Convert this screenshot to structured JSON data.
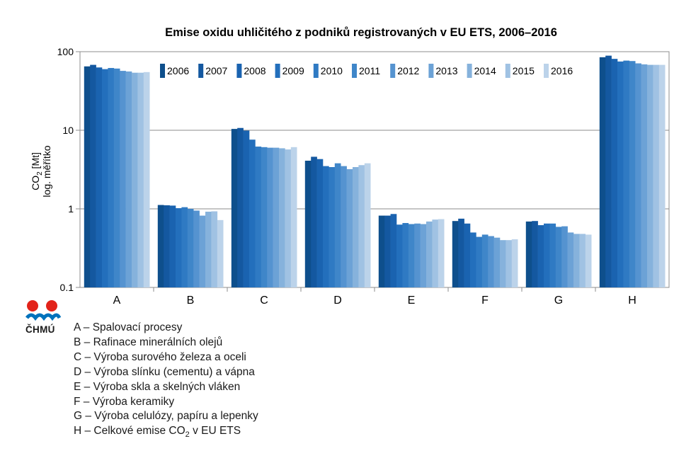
{
  "chart_data": {
    "type": "bar",
    "title": "Emise oxidu uhličitého z podniků registrovaných v EU ETS, 2006–2016",
    "ylabel_line1": "CO",
    "ylabel_sub": "2",
    "ylabel_unit": " [Mt]",
    "ylabel_line2": "log. měřítko",
    "yscale": "log",
    "ylim": [
      0.1,
      100
    ],
    "yticks": [
      {
        "value": 0.1,
        "label": "0.1"
      },
      {
        "value": 1,
        "label": "1"
      },
      {
        "value": 10,
        "label": "10"
      },
      {
        "value": 100,
        "label": "100"
      }
    ],
    "grid": true,
    "legend_position": "top",
    "categories": [
      "A",
      "B",
      "C",
      "D",
      "E",
      "F",
      "G",
      "H"
    ],
    "series": [
      {
        "name": "2006",
        "color": "#0e4f8c",
        "values": [
          65,
          1.12,
          10.4,
          4.1,
          0.82,
          0.7,
          0.69,
          85
        ]
      },
      {
        "name": "2007",
        "color": "#1458a0",
        "values": [
          68,
          1.11,
          10.7,
          4.6,
          0.82,
          0.75,
          0.7,
          89
        ]
      },
      {
        "name": "2008",
        "color": "#1a63b0",
        "values": [
          63,
          1.1,
          9.9,
          4.3,
          0.86,
          0.65,
          0.62,
          81
        ]
      },
      {
        "name": "2009",
        "color": "#236fbc",
        "values": [
          60,
          1.02,
          7.6,
          3.5,
          0.63,
          0.5,
          0.65,
          75
        ]
      },
      {
        "name": "2010",
        "color": "#2f7ac3",
        "values": [
          62,
          1.05,
          6.2,
          3.4,
          0.66,
          0.44,
          0.65,
          77
        ]
      },
      {
        "name": "2011",
        "color": "#3f86c9",
        "values": [
          61,
          1.0,
          6.1,
          3.8,
          0.64,
          0.47,
          0.59,
          76
        ]
      },
      {
        "name": "2012",
        "color": "#5593d0",
        "values": [
          57,
          0.95,
          6.0,
          3.5,
          0.65,
          0.45,
          0.6,
          71
        ]
      },
      {
        "name": "2013",
        "color": "#6ca2d6",
        "values": [
          56,
          0.82,
          6.0,
          3.2,
          0.64,
          0.43,
          0.5,
          69
        ]
      },
      {
        "name": "2014",
        "color": "#86b2dc",
        "values": [
          54,
          0.92,
          5.9,
          3.4,
          0.69,
          0.4,
          0.48,
          68
        ]
      },
      {
        "name": "2015",
        "color": "#a0c2e3",
        "values": [
          54,
          0.93,
          5.7,
          3.6,
          0.73,
          0.4,
          0.48,
          68
        ]
      },
      {
        "name": "2016",
        "color": "#bcd3ea",
        "values": [
          55,
          0.72,
          6.1,
          3.8,
          0.74,
          0.41,
          0.47,
          68
        ]
      }
    ]
  },
  "logo": {
    "text": "ČHMÚ",
    "color_red": "#e2231a",
    "color_blue": "#0072bc"
  },
  "notes": [
    {
      "text": "A – Spalovací procesy"
    },
    {
      "text": "B – Rafinace minerálních olejů"
    },
    {
      "text": "C – Výroba surového železa a oceli"
    },
    {
      "text": "D – Výroba slínku (cementu) a vápna"
    },
    {
      "text": "E – Výroba skla a skelných vláken"
    },
    {
      "text": "F – Výroba keramiky"
    },
    {
      "text": "G – Výroba celulózy, papíru a lepenky"
    },
    {
      "text": "H – Celkové emise CO",
      "sub": "2",
      "tail": " v EU ETS"
    }
  ]
}
